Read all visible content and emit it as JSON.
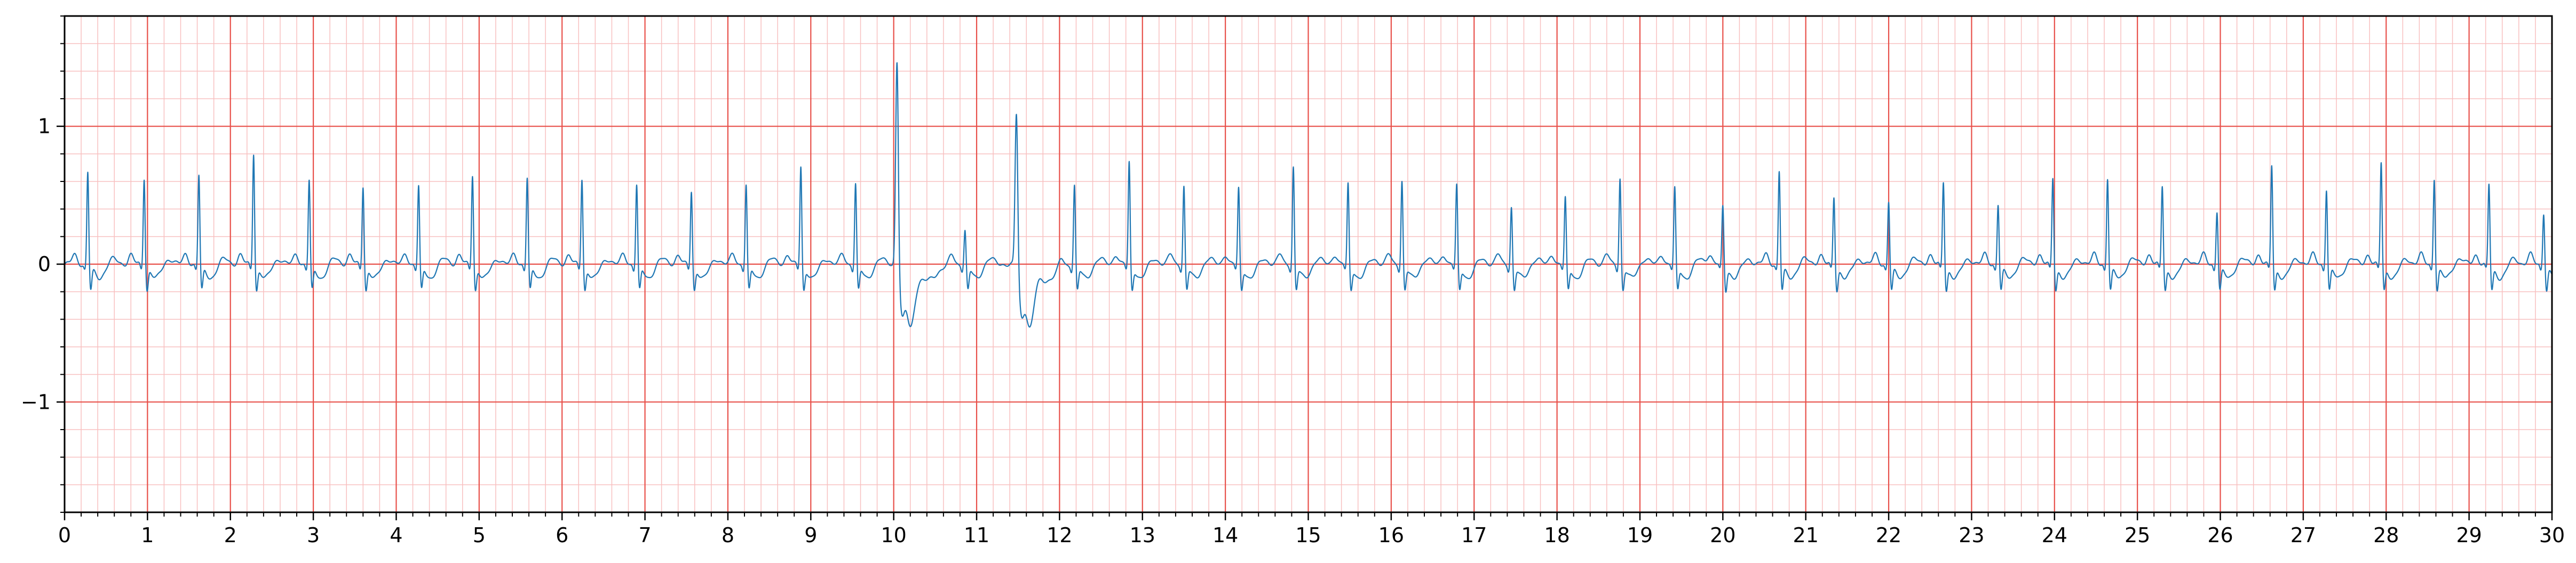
{
  "chart_data": {
    "type": "line",
    "title": "",
    "xlabel": "",
    "ylabel": "",
    "xlim": [
      0,
      30
    ],
    "ylim": [
      -1.8,
      1.8
    ],
    "x_ticks": [
      {
        "value": 0,
        "label": "0"
      },
      {
        "value": 1,
        "label": "1"
      },
      {
        "value": 2,
        "label": "2"
      },
      {
        "value": 3,
        "label": "3"
      },
      {
        "value": 4,
        "label": "4"
      },
      {
        "value": 5,
        "label": "5"
      },
      {
        "value": 6,
        "label": "6"
      },
      {
        "value": 7,
        "label": "7"
      },
      {
        "value": 8,
        "label": "8"
      },
      {
        "value": 9,
        "label": "9"
      },
      {
        "value": 10,
        "label": "10"
      },
      {
        "value": 11,
        "label": "11"
      },
      {
        "value": 12,
        "label": "12"
      },
      {
        "value": 13,
        "label": "13"
      },
      {
        "value": 14,
        "label": "14"
      },
      {
        "value": 15,
        "label": "15"
      },
      {
        "value": 16,
        "label": "16"
      },
      {
        "value": 17,
        "label": "17"
      },
      {
        "value": 18,
        "label": "18"
      },
      {
        "value": 19,
        "label": "19"
      },
      {
        "value": 20,
        "label": "20"
      },
      {
        "value": 21,
        "label": "21"
      },
      {
        "value": 22,
        "label": "22"
      },
      {
        "value": 23,
        "label": "23"
      },
      {
        "value": 24,
        "label": "24"
      },
      {
        "value": 25,
        "label": "25"
      },
      {
        "value": 26,
        "label": "26"
      },
      {
        "value": 27,
        "label": "27"
      },
      {
        "value": 28,
        "label": "28"
      },
      {
        "value": 29,
        "label": "29"
      },
      {
        "value": 30,
        "label": "30"
      }
    ],
    "y_ticks": [
      {
        "value": 1,
        "label": "1"
      },
      {
        "value": 0,
        "label": "0"
      },
      {
        "value": -1,
        "label": "−1"
      }
    ],
    "grid": {
      "major": true,
      "minor": true,
      "major_x_step": 1,
      "minor_x_step": 0.2,
      "major_y_step": 1,
      "minor_y_step": 0.2,
      "major_color": "#e8504a",
      "minor_color": "#f8c0c0"
    },
    "line_color": "#1f77b4",
    "beats": [
      {
        "t": 0.28,
        "r": 0.68
      },
      {
        "t": 0.96,
        "r": 0.64
      },
      {
        "t": 1.62,
        "r": 0.66
      },
      {
        "t": 2.28,
        "r": 0.82
      },
      {
        "t": 2.95,
        "r": 0.62
      },
      {
        "t": 3.6,
        "r": 0.58
      },
      {
        "t": 4.27,
        "r": 0.58
      },
      {
        "t": 4.92,
        "r": 0.66
      },
      {
        "t": 5.58,
        "r": 0.64
      },
      {
        "t": 6.24,
        "r": 0.63
      },
      {
        "t": 6.9,
        "r": 0.59
      },
      {
        "t": 7.56,
        "r": 0.54
      },
      {
        "t": 8.22,
        "r": 0.59
      },
      {
        "t": 8.88,
        "r": 0.72
      },
      {
        "t": 9.54,
        "r": 0.6
      },
      {
        "t": 10.04,
        "r": 1.52,
        "pvc": true
      },
      {
        "t": 10.86,
        "r": 0.26
      },
      {
        "t": 11.48,
        "r": 1.13,
        "pvc": true
      },
      {
        "t": 12.18,
        "r": 0.59
      },
      {
        "t": 12.84,
        "r": 0.75
      },
      {
        "t": 13.5,
        "r": 0.58
      },
      {
        "t": 14.16,
        "r": 0.56
      },
      {
        "t": 14.82,
        "r": 0.72
      },
      {
        "t": 15.48,
        "r": 0.59
      },
      {
        "t": 16.13,
        "r": 0.62
      },
      {
        "t": 16.79,
        "r": 0.58
      },
      {
        "t": 17.45,
        "r": 0.43
      },
      {
        "t": 18.1,
        "r": 0.49
      },
      {
        "t": 18.76,
        "r": 0.64
      },
      {
        "t": 19.42,
        "r": 0.56
      },
      {
        "t": 20.0,
        "r": 0.43
      },
      {
        "t": 20.68,
        "r": 0.69
      },
      {
        "t": 21.34,
        "r": 0.5
      },
      {
        "t": 22.0,
        "r": 0.47
      },
      {
        "t": 22.66,
        "r": 0.61
      },
      {
        "t": 23.32,
        "r": 0.45
      },
      {
        "t": 23.98,
        "r": 0.64
      },
      {
        "t": 24.64,
        "r": 0.64
      },
      {
        "t": 25.3,
        "r": 0.58
      },
      {
        "t": 25.96,
        "r": 0.4
      },
      {
        "t": 26.62,
        "r": 0.73
      },
      {
        "t": 27.28,
        "r": 0.56
      },
      {
        "t": 27.94,
        "r": 0.75
      },
      {
        "t": 28.58,
        "r": 0.64
      },
      {
        "t": 29.24,
        "r": 0.59
      },
      {
        "t": 29.9,
        "r": 0.39
      }
    ]
  }
}
